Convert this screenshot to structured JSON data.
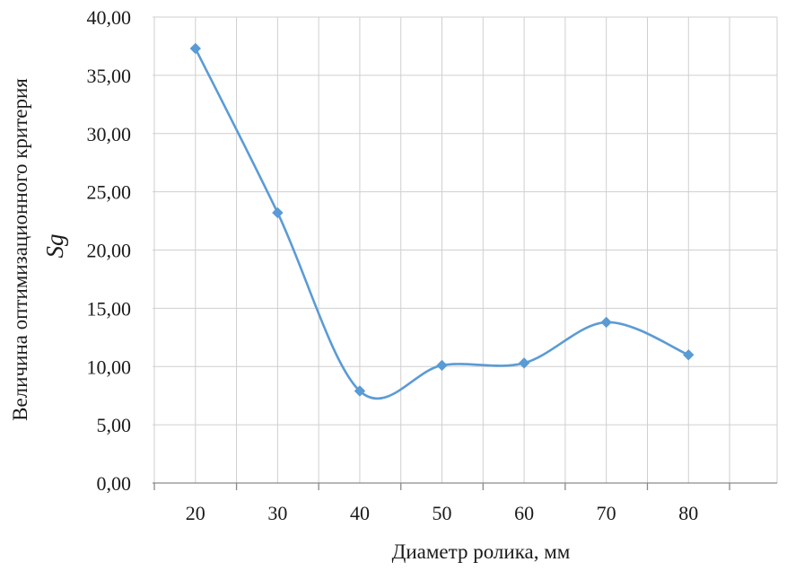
{
  "chart_data": {
    "type": "line",
    "smooth": true,
    "title": "",
    "xlabel": "Диаметр ролика, мм",
    "ylabel": "Величина оптимизационного критерия",
    "ylabel_symbol": "Sg",
    "categories": [
      "20",
      "30",
      "40",
      "50",
      "60",
      "70",
      "80"
    ],
    "series": [
      {
        "values": [
          37.3,
          23.2,
          7.9,
          10.1,
          10.3,
          13.8,
          11.0
        ],
        "color": "#5b9bd5",
        "marker": "diamond"
      }
    ],
    "ylim": [
      0,
      40
    ],
    "yticks": [
      "0,00",
      "5,00",
      "10,00",
      "15,00",
      "20,00",
      "25,00",
      "30,00",
      "35,00",
      "40,00"
    ],
    "grid": true,
    "legend": "none"
  }
}
